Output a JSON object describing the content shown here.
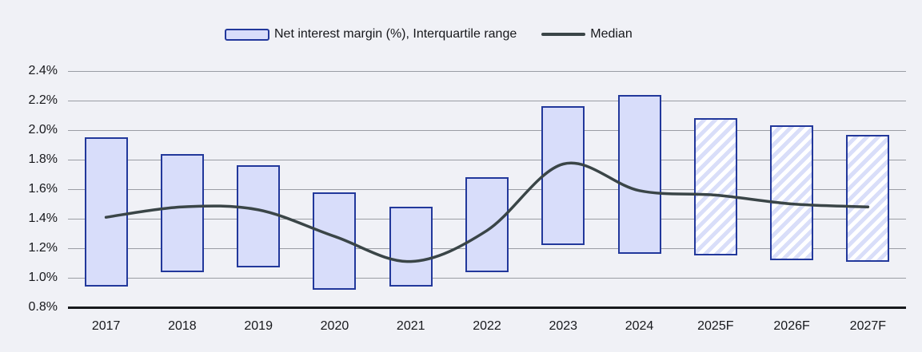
{
  "legend": {
    "bar_label": "Net interest margin (%), Interquartile range",
    "line_label": "Median"
  },
  "colors": {
    "background": "#f0f1f6",
    "bar_fill": "#d8ddfa",
    "bar_border": "#22389b",
    "forecast_hatch": "#d9def9",
    "median_line": "#3a4547",
    "gridline": "#9a9da4",
    "axis_line": "#17191c",
    "text": "#17181c"
  },
  "chart_data": {
    "type": "bar",
    "subtype": "column-range-with-line",
    "title": "",
    "xlabel": "",
    "ylabel": "",
    "ylim": [
      0.8,
      2.4
    ],
    "y_tick_step": 0.2,
    "y_ticks": [
      "2.4%",
      "2.2%",
      "2.0%",
      "1.8%",
      "1.6%",
      "1.4%",
      "1.2%",
      "1.0%",
      "0.8%"
    ],
    "grid": true,
    "legend_position": "top",
    "categories": [
      "2017",
      "2018",
      "2019",
      "2020",
      "2021",
      "2022",
      "2023",
      "2024",
      "2025F",
      "2026F",
      "2027F"
    ],
    "series": [
      {
        "name": "Net interest margin (%), Interquartile range",
        "type": "column-range",
        "low": [
          0.94,
          1.04,
          1.07,
          0.92,
          0.94,
          1.04,
          1.22,
          1.16,
          1.15,
          1.12,
          1.11
        ],
        "high": [
          1.95,
          1.84,
          1.76,
          1.58,
          1.48,
          1.68,
          2.16,
          2.24,
          2.08,
          2.03,
          1.97
        ],
        "forecast": [
          false,
          false,
          false,
          false,
          false,
          false,
          false,
          false,
          true,
          true,
          true
        ]
      },
      {
        "name": "Median",
        "type": "line",
        "values": [
          1.41,
          1.48,
          1.46,
          1.28,
          1.11,
          1.32,
          1.77,
          1.59,
          1.56,
          1.5,
          1.48
        ]
      }
    ]
  }
}
